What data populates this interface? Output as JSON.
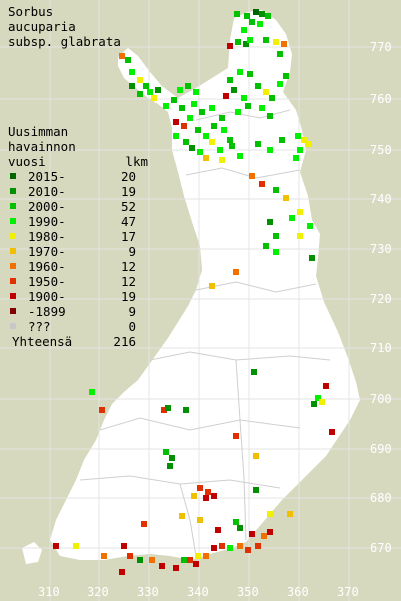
{
  "title": [
    "Sorbus",
    "aucuparia",
    "subsp. glabrata"
  ],
  "legend": {
    "header": [
      "Uusimman",
      "havainnon"
    ],
    "col_period": "vuosi",
    "col_count": "lkm",
    "items": [
      {
        "label": "2015-",
        "count": "20",
        "color": "#006400"
      },
      {
        "label": "2010-",
        "count": "19",
        "color": "#009000"
      },
      {
        "label": "2000-",
        "count": "52",
        "color": "#00c000"
      },
      {
        "label": "1990-",
        "count": "47",
        "color": "#00f000"
      },
      {
        "label": "1980-",
        "count": "17",
        "color": "#f0f000"
      },
      {
        "label": "1970-",
        "count": "9",
        "color": "#f0c000"
      },
      {
        "label": "1960-",
        "count": "12",
        "color": "#f07000"
      },
      {
        "label": "1950-",
        "count": "12",
        "color": "#e03000"
      },
      {
        "label": "1900-",
        "count": "19",
        "color": "#c00000"
      },
      {
        "label": "-1899",
        "count": "9",
        "color": "#800000"
      },
      {
        "label": "???",
        "count": "0",
        "color": "#c8c8c8"
      }
    ],
    "total_label": "Yhteensä",
    "total_count": "216"
  },
  "axes": {
    "x_ticks": [
      "310",
      "320",
      "330",
      "340",
      "350",
      "360",
      "370"
    ],
    "y_ticks": [
      "770",
      "760",
      "750",
      "740",
      "730",
      "720",
      "710",
      "700",
      "690",
      "680",
      "670"
    ]
  }
}
